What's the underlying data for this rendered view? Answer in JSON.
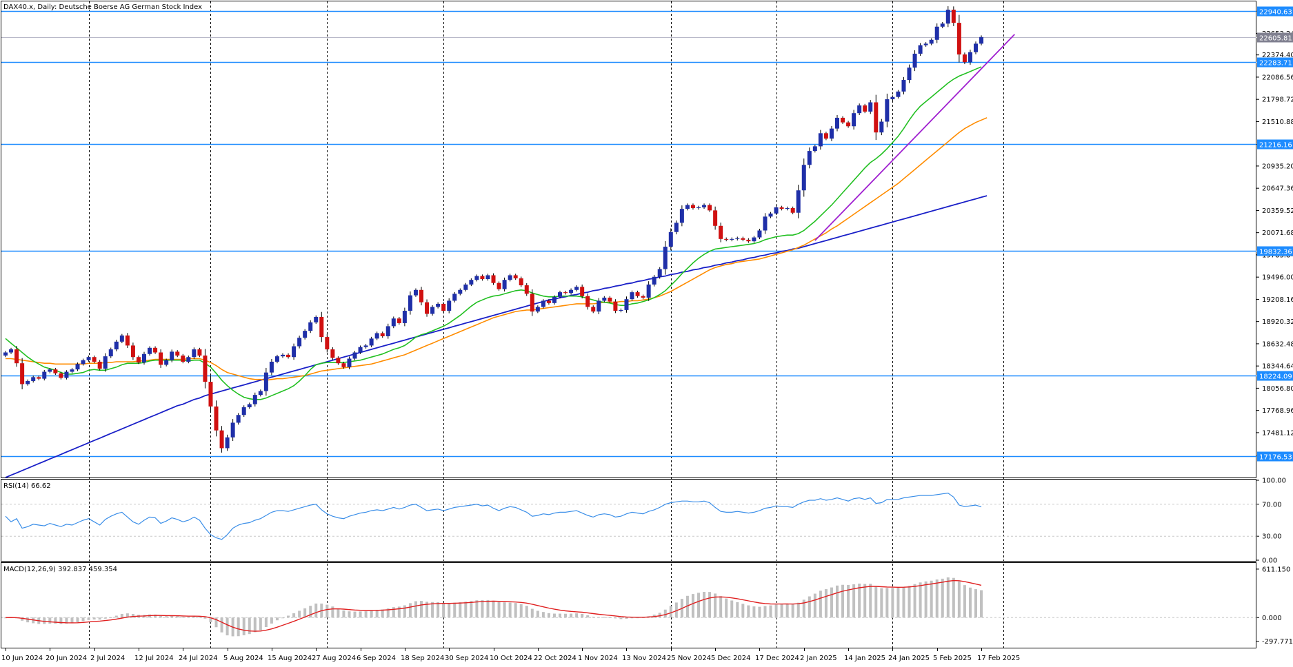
{
  "header": {
    "symbol_info": "DAX40.x, Daily:  Deutsche Boerse AG German Stock Index"
  },
  "rsi_label": "RSI(14) 66.62",
  "macd_label": "MACD(12,26,9) 392.837 459.354",
  "colors": {
    "bull": "#1f2fa8",
    "bear": "#d01010",
    "ma_fast": "#22c022",
    "ma_mid": "#ff8c00",
    "ma_slow": "#1a20c8",
    "trendline": "#a020d0",
    "hline": "#1e8cff",
    "rsi": "#3a8ee8",
    "macd_signal": "#e02020",
    "macd_hist": "#c0c0c0"
  },
  "chart_data": [
    {
      "type": "candlestick",
      "title": "DAX40.x, Daily:  Deutsche Boerse AG German Stock Index",
      "ylim": [
        16900,
        23050
      ],
      "y_ticks": [
        "22940.63",
        "22653.24",
        "22374.40",
        "22086.56",
        "21798.72",
        "21510.88",
        "21216.16",
        "20935.20",
        "20647.36",
        "20359.52",
        "20071.68",
        "19783.84",
        "19496.00",
        "19208.16",
        "18920.32",
        "18632.48",
        "18344.64",
        "18056.80",
        "17768.96",
        "17481.12",
        "17176.53"
      ],
      "x_labels": [
        "10 Jun 2024",
        "20 Jun 2024",
        "2 Jul 2024",
        "12 Jul 2024",
        "24 Jul 2024",
        "5 Aug 2024",
        "15 Aug 2024",
        "27 Aug 2024",
        "6 Sep 2024",
        "18 Sep 2024",
        "30 Sep 2024",
        "10 Oct 2024",
        "22 Oct 2024",
        "1 Nov 2024",
        "13 Nov 2024",
        "25 Nov 2024",
        "5 Dec 2024",
        "17 Dec 2024",
        "2 Jan 2025",
        "14 Jan 2025",
        "24 Jan 2025",
        "5 Feb 2025",
        "17 Feb 2025"
      ],
      "x_label_index": [
        0,
        8,
        16,
        24,
        32,
        40,
        48,
        56,
        64,
        72,
        80,
        88,
        96,
        104,
        112,
        120,
        128,
        136,
        144,
        152,
        160,
        168,
        176
      ],
      "vgrid_index": [
        15,
        37,
        58,
        79,
        120,
        139,
        160,
        180
      ],
      "horizontal_levels": [
        {
          "value": 22940.63,
          "label": "22940.63"
        },
        {
          "value": 22283.71,
          "label": "22283.71"
        },
        {
          "value": 21216.16,
          "label": "21216.16"
        },
        {
          "value": 19832.36,
          "label": "19832.36"
        },
        {
          "value": 18224.09,
          "label": "18224.09"
        },
        {
          "value": 17176.53,
          "label": "17176.53"
        }
      ],
      "current_price": {
        "value": 22605.81,
        "label": "22605.81"
      },
      "trendline": {
        "from": [
          146,
          19970
        ],
        "to": [
          182,
          22640
        ]
      },
      "closes": [
        18520,
        18560,
        18380,
        18110,
        18150,
        18200,
        18180,
        18270,
        18300,
        18250,
        18190,
        18270,
        18300,
        18370,
        18420,
        18460,
        18400,
        18310,
        18470,
        18560,
        18660,
        18740,
        18610,
        18460,
        18390,
        18500,
        18580,
        18520,
        18360,
        18420,
        18530,
        18480,
        18400,
        18460,
        18560,
        18480,
        18140,
        17820,
        17510,
        17280,
        17420,
        17610,
        17710,
        17810,
        17850,
        17970,
        18020,
        18260,
        18400,
        18470,
        18490,
        18460,
        18600,
        18710,
        18800,
        18910,
        18980,
        18720,
        18560,
        18450,
        18380,
        18330,
        18440,
        18520,
        18590,
        18610,
        18700,
        18770,
        18730,
        18860,
        18960,
        18900,
        19060,
        19260,
        19330,
        19170,
        19020,
        19110,
        19150,
        19060,
        19190,
        19280,
        19330,
        19400,
        19460,
        19510,
        19470,
        19520,
        19420,
        19340,
        19460,
        19520,
        19480,
        19390,
        19280,
        19050,
        19110,
        19190,
        19160,
        19240,
        19300,
        19290,
        19330,
        19370,
        19250,
        19110,
        19050,
        19190,
        19230,
        19180,
        19060,
        19070,
        19210,
        19300,
        19250,
        19230,
        19400,
        19500,
        19600,
        19890,
        20080,
        20200,
        20380,
        20430,
        20390,
        20400,
        20430,
        20360,
        20160,
        19990,
        19980,
        19990,
        20000,
        19980,
        19960,
        20010,
        20100,
        20280,
        20320,
        20400,
        20380,
        20390,
        20330,
        20620,
        20950,
        21130,
        21190,
        21360,
        21290,
        21420,
        21560,
        21500,
        21450,
        21620,
        21720,
        21640,
        21760,
        21370,
        21510,
        21800,
        21830,
        21900,
        22050,
        22210,
        22390,
        22500,
        22520,
        22570,
        22740,
        22780,
        22960,
        22790,
        22380,
        22280,
        22410,
        22520,
        22605.81
      ],
      "ma_fast": [
        18700,
        18640,
        18580,
        18520,
        18460,
        18410,
        18370,
        18330,
        18310,
        18290,
        18260,
        18240,
        18240,
        18250,
        18260,
        18290,
        18300,
        18290,
        18290,
        18310,
        18330,
        18360,
        18380,
        18380,
        18380,
        18390,
        18410,
        18420,
        18420,
        18420,
        18420,
        18420,
        18420,
        18410,
        18420,
        18420,
        18380,
        18330,
        18250,
        18160,
        18090,
        18030,
        17980,
        17940,
        17920,
        17910,
        17910,
        17930,
        17960,
        17990,
        18020,
        18050,
        18090,
        18150,
        18220,
        18300,
        18360,
        18380,
        18390,
        18390,
        18390,
        18390,
        18400,
        18410,
        18420,
        18440,
        18460,
        18480,
        18500,
        18530,
        18560,
        18580,
        18610,
        18660,
        18720,
        18750,
        18770,
        18800,
        18830,
        18860,
        18900,
        18950,
        19000,
        19060,
        19120,
        19170,
        19200,
        19230,
        19250,
        19260,
        19280,
        19300,
        19320,
        19330,
        19320,
        19290,
        19270,
        19250,
        19240,
        19240,
        19250,
        19250,
        19250,
        19250,
        19240,
        19220,
        19200,
        19180,
        19170,
        19160,
        19140,
        19130,
        19130,
        19150,
        19160,
        19180,
        19200,
        19230,
        19270,
        19320,
        19390,
        19460,
        19540,
        19610,
        19680,
        19740,
        19790,
        19830,
        19860,
        19870,
        19880,
        19890,
        19900,
        19910,
        19920,
        19930,
        19950,
        19980,
        20000,
        20020,
        20030,
        20040,
        20040,
        20060,
        20100,
        20160,
        20220,
        20290,
        20360,
        20430,
        20510,
        20590,
        20670,
        20750,
        20830,
        20910,
        20980,
        21030,
        21090,
        21160,
        21240,
        21320,
        21420,
        21530,
        21630,
        21710,
        21770,
        21830,
        21890,
        21950,
        22010,
        22060,
        22100,
        22130,
        22160,
        22190,
        22220
      ],
      "ma_mid": [
        18440,
        18440,
        18430,
        18420,
        18410,
        18400,
        18390,
        18380,
        18380,
        18370,
        18370,
        18370,
        18370,
        18370,
        18370,
        18380,
        18380,
        18380,
        18390,
        18390,
        18400,
        18400,
        18400,
        18400,
        18410,
        18410,
        18420,
        18430,
        18430,
        18430,
        18430,
        18430,
        18430,
        18440,
        18440,
        18440,
        18420,
        18390,
        18350,
        18300,
        18260,
        18240,
        18220,
        18200,
        18180,
        18170,
        18170,
        18160,
        18170,
        18180,
        18180,
        18190,
        18200,
        18210,
        18220,
        18240,
        18260,
        18280,
        18290,
        18300,
        18310,
        18320,
        18330,
        18340,
        18350,
        18360,
        18370,
        18390,
        18410,
        18430,
        18450,
        18470,
        18490,
        18520,
        18550,
        18580,
        18610,
        18640,
        18670,
        18700,
        18730,
        18760,
        18790,
        18820,
        18850,
        18880,
        18910,
        18940,
        18970,
        18990,
        19010,
        19030,
        19050,
        19060,
        19070,
        19070,
        19080,
        19090,
        19100,
        19110,
        19120,
        19130,
        19140,
        19150,
        19150,
        19150,
        19150,
        19160,
        19170,
        19170,
        19170,
        19180,
        19180,
        19190,
        19190,
        19200,
        19210,
        19230,
        19250,
        19280,
        19310,
        19350,
        19390,
        19430,
        19470,
        19510,
        19550,
        19590,
        19620,
        19640,
        19660,
        19670,
        19690,
        19700,
        19710,
        19720,
        19730,
        19750,
        19770,
        19790,
        19810,
        19830,
        19850,
        19880,
        19910,
        19950,
        19990,
        20030,
        20070,
        20120,
        20160,
        20210,
        20260,
        20310,
        20360,
        20410,
        20460,
        20510,
        20560,
        20610,
        20660,
        20710,
        20770,
        20830,
        20890,
        20950,
        21010,
        21070,
        21130,
        21190,
        21250,
        21310,
        21370,
        21420,
        21460,
        21500,
        21530,
        21560
      ],
      "ma_slow": [
        16900,
        16930,
        16960,
        16990,
        17020,
        17050,
        17080,
        17110,
        17140,
        17170,
        17200,
        17230,
        17260,
        17290,
        17320,
        17350,
        17380,
        17410,
        17440,
        17470,
        17500,
        17530,
        17560,
        17590,
        17620,
        17650,
        17680,
        17710,
        17740,
        17770,
        17800,
        17830,
        17850,
        17880,
        17910,
        17930,
        17960,
        17980,
        18000,
        18020,
        18040,
        18060,
        18080,
        18100,
        18120,
        18140,
        18160,
        18180,
        18200,
        18220,
        18240,
        18260,
        18280,
        18300,
        18320,
        18340,
        18360,
        18380,
        18400,
        18420,
        18440,
        18460,
        18480,
        18500,
        18520,
        18540,
        18560,
        18580,
        18600,
        18620,
        18640,
        18660,
        18680,
        18700,
        18720,
        18740,
        18760,
        18780,
        18800,
        18820,
        18840,
        18860,
        18880,
        18900,
        18920,
        18940,
        18960,
        18980,
        19000,
        19020,
        19040,
        19060,
        19080,
        19100,
        19120,
        19140,
        19160,
        19180,
        19200,
        19210,
        19230,
        19240,
        19260,
        19270,
        19290,
        19300,
        19320,
        19330,
        19350,
        19360,
        19380,
        19390,
        19410,
        19420,
        19440,
        19450,
        19470,
        19480,
        19500,
        19510,
        19530,
        19540,
        19560,
        19570,
        19590,
        19600,
        19620,
        19630,
        19650,
        19660,
        19680,
        19690,
        19710,
        19720,
        19740,
        19750,
        19770,
        19780,
        19800,
        19810,
        19830,
        19840,
        19860,
        19870,
        19890,
        19910,
        19930,
        19950,
        19970,
        19990,
        20010,
        20030,
        20050,
        20070,
        20090,
        20110,
        20130,
        20150,
        20170,
        20190,
        20210,
        20230,
        20250,
        20270,
        20290,
        20310,
        20330,
        20350,
        20370,
        20390,
        20410,
        20430,
        20450,
        20470,
        20490,
        20510,
        20530,
        20550
      ]
    },
    {
      "type": "line",
      "title": "RSI(14) 66.62",
      "ylim": [
        0,
        100
      ],
      "y_ticks": [
        "100.00",
        "70.00",
        "30.00",
        "0.00"
      ],
      "values": [
        55,
        48,
        52,
        40,
        42,
        45,
        44,
        43,
        46,
        44,
        42,
        45,
        44,
        47,
        50,
        52,
        48,
        44,
        51,
        55,
        58,
        60,
        54,
        48,
        45,
        50,
        54,
        53,
        46,
        49,
        53,
        51,
        48,
        50,
        54,
        50,
        40,
        32,
        28,
        26,
        32,
        40,
        44,
        46,
        47,
        50,
        52,
        56,
        60,
        62,
        62,
        61,
        63,
        65,
        67,
        69,
        70,
        63,
        58,
        55,
        53,
        52,
        55,
        57,
        59,
        60,
        62,
        63,
        62,
        64,
        66,
        64,
        66,
        69,
        70,
        66,
        62,
        63,
        64,
        62,
        64,
        66,
        67,
        68,
        69,
        70,
        68,
        69,
        65,
        62,
        65,
        67,
        66,
        63,
        60,
        55,
        56,
        58,
        57,
        59,
        60,
        60,
        61,
        62,
        59,
        56,
        54,
        57,
        58,
        57,
        54,
        55,
        58,
        60,
        59,
        58,
        61,
        63,
        66,
        70,
        72,
        73,
        74,
        74,
        73,
        73,
        74,
        72,
        66,
        61,
        60,
        60,
        61,
        60,
        59,
        60,
        62,
        65,
        66,
        68,
        67,
        67,
        66,
        70,
        73,
        75,
        75,
        77,
        75,
        76,
        78,
        76,
        74,
        77,
        78,
        76,
        78,
        71,
        72,
        76,
        76,
        76,
        78,
        79,
        80,
        81,
        81,
        81,
        82,
        83,
        84,
        79,
        69,
        67,
        68,
        69,
        66.62
      ]
    },
    {
      "type": "bar",
      "title": "MACD(12,26,9) 392.837 459.354",
      "ylim": [
        -380,
        680
      ],
      "y_ticks": [
        "611.150",
        "0.000",
        "-297.771"
      ]
    }
  ]
}
